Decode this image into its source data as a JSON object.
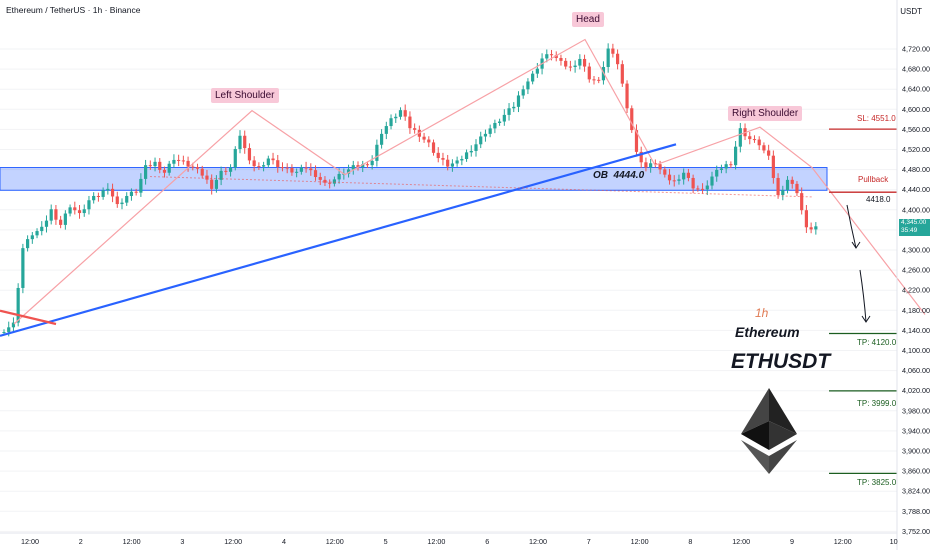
{
  "header": {
    "symbol_title": "Ethereum / TetherUS · 1h · Binance",
    "currency": "USDT"
  },
  "annotations": {
    "head": "Head",
    "left_shoulder": "Left Shoulder",
    "right_shoulder": "Right Shoulder",
    "ob_label": "OB  4444.0",
    "timeframe": "1h",
    "coin_name": "Ethereum",
    "pair": "ETHUSDT"
  },
  "levels": {
    "sl_label": "SL: 4551.0",
    "pullback_label": "Pullback",
    "pullback_value": "4418.0",
    "tp1_label": "TP: 4120.0",
    "tp2_label": "TP: 3999.0",
    "tp3_label": "TP: 3825.0"
  },
  "price_tag": {
    "price": "4,345.00",
    "countdown": "35:49"
  },
  "colors": {
    "up": "#26a69a",
    "down": "#ef5350",
    "trendline": "#2962ff",
    "zone": "#2962ff",
    "pattern_line": "#f7a1a6",
    "tp_line": "#1b5e20",
    "sl_line": "#c62828"
  },
  "chart_data": {
    "type": "candlestick",
    "y_axis_ticks": [
      "4,720.00",
      "4,680.00",
      "4,640.00",
      "4,600.00",
      "4,560.00",
      "4,520.00",
      "4,480.00",
      "4,440.00",
      "4,400.00",
      "4,360.00",
      "4,300.00",
      "4,260.00",
      "4,220.00",
      "4,180.00",
      "4,140.00",
      "4,100.00",
      "4,060.00",
      "4,020.00",
      "3,980.00",
      "3,940.00",
      "3,900.00",
      "3,860.00",
      "3,824.00",
      "3,788.00",
      "3,752.00"
    ],
    "x_axis_ticks": [
      "12:00",
      "2",
      "12:00",
      "3",
      "12:00",
      "4",
      "12:00",
      "5",
      "12:00",
      "6",
      "12:00",
      "7",
      "12:00",
      "8",
      "12:00",
      "9",
      "12:00",
      "10"
    ],
    "order_block": {
      "from": 4422,
      "to": 4470,
      "label": "OB 4444.0"
    },
    "stop_loss": 4551.0,
    "pullback": 4418.0,
    "take_profits": [
      4120.0,
      3999.0,
      3825.0
    ],
    "last_price": 4345.0,
    "close_path": [
      [
        0,
        4128
      ],
      [
        2,
        4140
      ],
      [
        4,
        4300
      ],
      [
        6,
        4330
      ],
      [
        8,
        4340
      ],
      [
        10,
        4380
      ],
      [
        12,
        4350
      ],
      [
        14,
        4390
      ],
      [
        16,
        4370
      ],
      [
        18,
        4400
      ],
      [
        20,
        4410
      ],
      [
        22,
        4430
      ],
      [
        24,
        4390
      ],
      [
        26,
        4410
      ],
      [
        28,
        4420
      ],
      [
        30,
        4470
      ],
      [
        32,
        4480
      ],
      [
        34,
        4460
      ],
      [
        36,
        4490
      ],
      [
        38,
        4480
      ],
      [
        40,
        4470
      ],
      [
        42,
        4455
      ],
      [
        44,
        4430
      ],
      [
        46,
        4460
      ],
      [
        48,
        4470
      ],
      [
        50,
        4540
      ],
      [
        52,
        4480
      ],
      [
        54,
        4470
      ],
      [
        56,
        4490
      ],
      [
        58,
        4475
      ],
      [
        60,
        4465
      ],
      [
        62,
        4460
      ],
      [
        64,
        4470
      ],
      [
        66,
        4455
      ],
      [
        68,
        4435
      ],
      [
        70,
        4445
      ],
      [
        72,
        4460
      ],
      [
        74,
        4470
      ],
      [
        76,
        4475
      ],
      [
        78,
        4485
      ],
      [
        80,
        4545
      ],
      [
        82,
        4570
      ],
      [
        84,
        4590
      ],
      [
        86,
        4555
      ],
      [
        88,
        4540
      ],
      [
        90,
        4520
      ],
      [
        92,
        4490
      ],
      [
        94,
        4475
      ],
      [
        96,
        4480
      ],
      [
        98,
        4500
      ],
      [
        100,
        4520
      ],
      [
        102,
        4545
      ],
      [
        104,
        4560
      ],
      [
        106,
        4580
      ],
      [
        108,
        4600
      ],
      [
        110,
        4640
      ],
      [
        112,
        4665
      ],
      [
        114,
        4700
      ],
      [
        116,
        4710
      ],
      [
        118,
        4690
      ],
      [
        120,
        4680
      ],
      [
        122,
        4700
      ],
      [
        124,
        4660
      ],
      [
        126,
        4650
      ],
      [
        128,
        4720
      ],
      [
        130,
        4690
      ],
      [
        132,
        4600
      ],
      [
        134,
        4500
      ],
      [
        136,
        4470
      ],
      [
        138,
        4480
      ],
      [
        140,
        4450
      ],
      [
        142,
        4440
      ],
      [
        144,
        4460
      ],
      [
        146,
        4430
      ],
      [
        148,
        4420
      ],
      [
        150,
        4450
      ],
      [
        152,
        4470
      ],
      [
        154,
        4480
      ],
      [
        156,
        4550
      ],
      [
        158,
        4530
      ],
      [
        160,
        4520
      ],
      [
        162,
        4490
      ],
      [
        164,
        4410
      ],
      [
        166,
        4445
      ],
      [
        168,
        4420
      ],
      [
        170,
        4340
      ],
      [
        172,
        4345
      ]
    ]
  }
}
